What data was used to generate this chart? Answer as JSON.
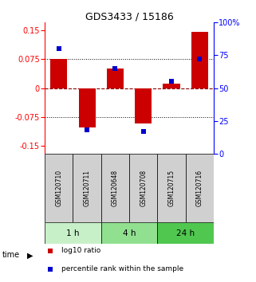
{
  "title": "GDS3433 / 15186",
  "samples": [
    "GSM120710",
    "GSM120711",
    "GSM120648",
    "GSM120708",
    "GSM120715",
    "GSM120716"
  ],
  "log10_ratio": [
    0.075,
    -0.102,
    0.05,
    -0.092,
    0.012,
    0.145
  ],
  "percentile_rank": [
    80,
    18,
    65,
    17,
    55,
    72
  ],
  "groups": [
    {
      "label": "1 h",
      "indices": [
        0,
        1
      ],
      "color": "#c8f0c8"
    },
    {
      "label": "4 h",
      "indices": [
        2,
        3
      ],
      "color": "#90e090"
    },
    {
      "label": "24 h",
      "indices": [
        4,
        5
      ],
      "color": "#50c850"
    }
  ],
  "ylim_left": [
    -0.17,
    0.17
  ],
  "ylim_right": [
    0,
    100
  ],
  "yticks_left": [
    -0.15,
    -0.075,
    0,
    0.075,
    0.15
  ],
  "yticks_right": [
    0,
    25,
    50,
    75,
    100
  ],
  "ytick_labels_left": [
    "-0.15",
    "-0.075",
    "0",
    "0.075",
    "0.15"
  ],
  "ytick_labels_right": [
    "0",
    "25",
    "50",
    "75",
    "100%"
  ],
  "bar_color": "#cc0000",
  "dot_color": "#0000cc",
  "background_color": "#ffffff",
  "plot_bg": "#ffffff",
  "sample_box_color": "#d0d0d0",
  "bar_width": 0.6
}
